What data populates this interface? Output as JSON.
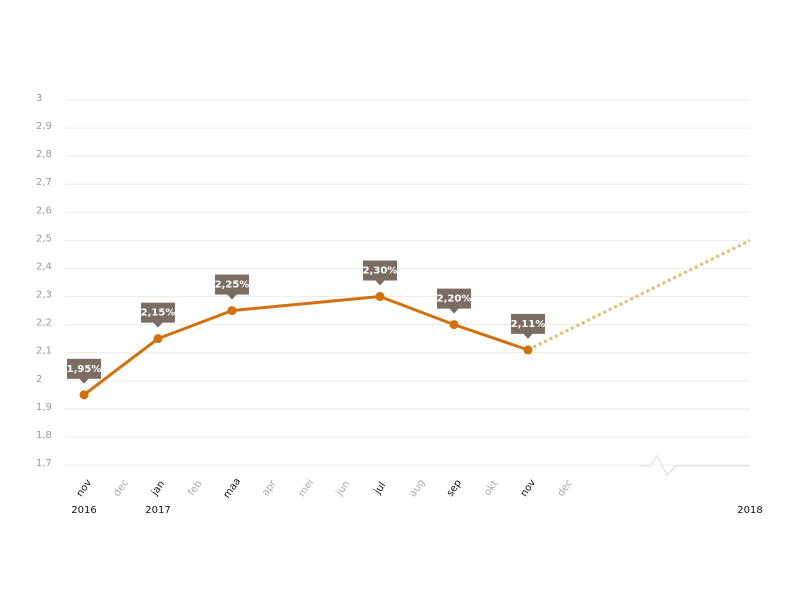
{
  "chart_data": {
    "type": "line",
    "categories": [
      "nov",
      "dec",
      "jan",
      "feb",
      "maa",
      "apr",
      "mei",
      "jun",
      "jul",
      "aug",
      "sep",
      "okt",
      "nov",
      "dec",
      null,
      null,
      null,
      null,
      null
    ],
    "years": [
      "2016",
      null,
      "2017",
      null,
      null,
      null,
      null,
      null,
      null,
      null,
      null,
      null,
      null,
      null,
      null,
      null,
      null,
      null,
      "2018"
    ],
    "xlim": [
      0,
      18
    ],
    "ylim": [
      1.7,
      3
    ],
    "yticks": [
      {
        "value": 1.7,
        "label": "1,7"
      },
      {
        "value": 1.8,
        "label": "1,8"
      },
      {
        "value": 1.9,
        "label": "1,9"
      },
      2,
      {
        "value": 2.1,
        "label": "2,1"
      },
      {
        "value": 2.2,
        "label": "2,2"
      },
      {
        "value": 2.3,
        "label": "2,3"
      },
      {
        "value": 2.4,
        "label": "2,4"
      },
      {
        "value": 2.5,
        "label": "2,5"
      },
      {
        "value": 2.6,
        "label": "2,6"
      },
      {
        "value": 2.7,
        "label": "2,7"
      },
      {
        "value": 2.8,
        "label": "2,8"
      },
      {
        "value": 2.9,
        "label": "2,9"
      },
      3
    ],
    "grid": true,
    "series": [
      {
        "color": "#d2700e",
        "style": "solid",
        "x": [
          0,
          2,
          4,
          8,
          10,
          12
        ],
        "values": [
          1.95,
          2.15,
          2.25,
          2.3,
          2.2,
          2.11
        ],
        "value_labels": [
          "1,95%",
          "2,15%",
          "2,25%",
          "2,30%",
          "2,20%",
          "2,11%"
        ]
      },
      {
        "color": "#e9b872",
        "style": "dotted",
        "x": [
          12,
          18
        ],
        "values": [
          2.11,
          2.5
        ]
      }
    ]
  }
}
